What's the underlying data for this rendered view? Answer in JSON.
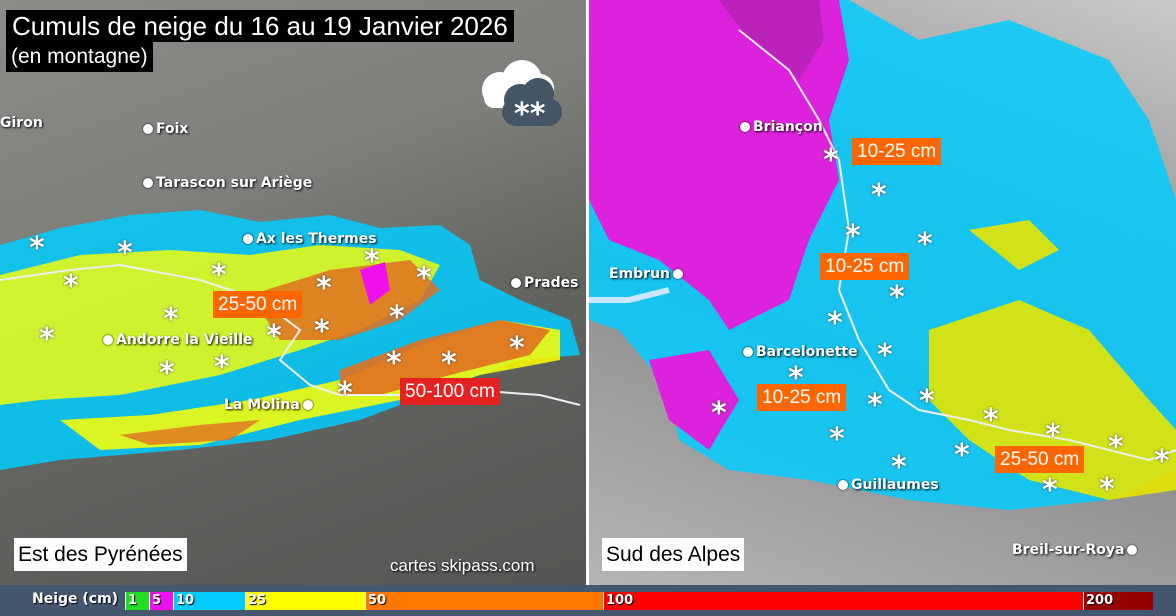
{
  "title": "Cumuls de neige du 16 au 19 Janvier 2026",
  "subtitle": "(en montagne)",
  "weather_icon": "cloud-snow-icon",
  "colors": {
    "c1": "#22dd22",
    "c5": "#ee11ee",
    "c10": "#00ccff",
    "c25": "#ffff00",
    "c50": "#ff7700",
    "c100": "#ff0000",
    "c200": "#990000",
    "badge_orange": "#ff6600",
    "badge_red": "#e52222"
  },
  "left_panel": {
    "region": "Est des Pyrénées",
    "credit": "cartes skipass.com",
    "cities": [
      "Giron",
      "Foix",
      "Tarascon sur Ariège",
      "Ax les Thermes",
      "Prades",
      "Andorre la Vieille",
      "La Molina"
    ],
    "badges": [
      "25-50 cm",
      "50-100 cm"
    ]
  },
  "right_panel": {
    "region": "Sud des Alpes",
    "cities": [
      "Briançon",
      "Embrun",
      "Barcelonette",
      "Guillaumes",
      "Breil-sur-Roya"
    ],
    "badges": [
      "10-25 cm",
      "10-25 cm",
      "10-25 cm",
      "25-50 cm"
    ]
  },
  "legend": {
    "title": "Neige (cm)",
    "stops": [
      "1",
      "5",
      "10",
      "25",
      "50",
      "100",
      "200"
    ]
  }
}
